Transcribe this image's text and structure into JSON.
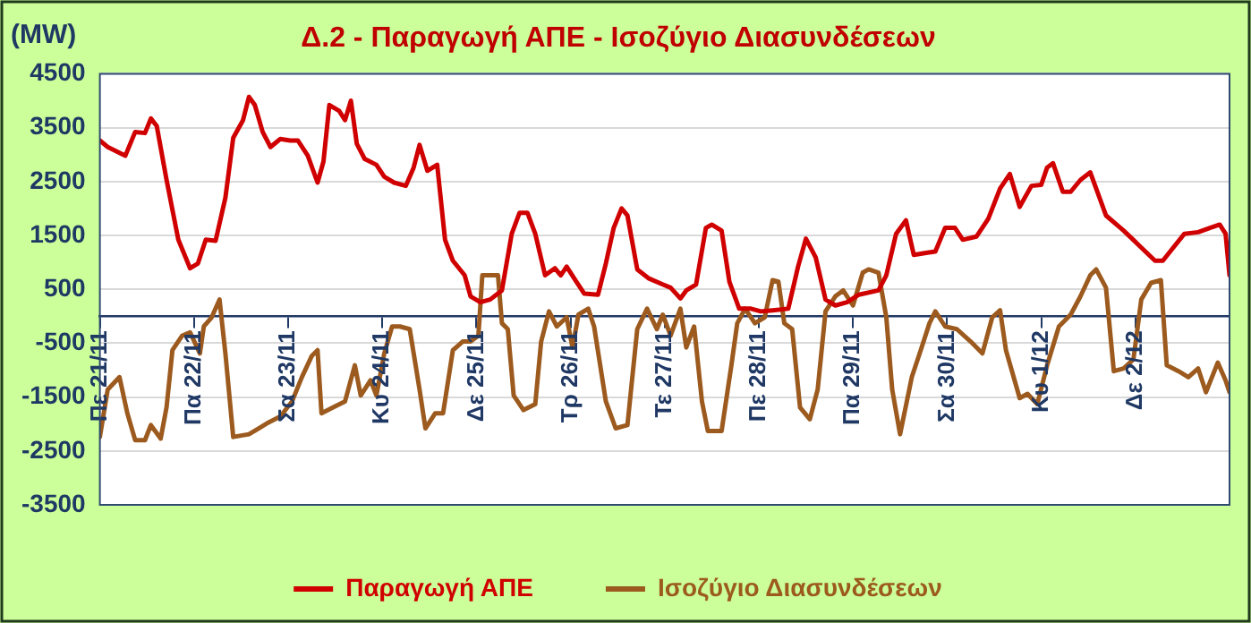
{
  "chart_data": {
    "type": "line",
    "title": "Δ.2 - Παραγωγή ΑΠΕ - Ισοζύγιο Διασυνδέσεων",
    "ylabel": "(MW)",
    "xlim": [
      "--11-21",
      "--12-03"
    ],
    "xticks": [
      {
        "value": "--11-21",
        "label": "Πε 21/11"
      },
      {
        "value": "--11-22",
        "label": "Πα 22/11"
      },
      {
        "value": "--11-23",
        "label": "Σα 23/11"
      },
      {
        "value": "--11-24",
        "label": "Κυ 24/11"
      },
      {
        "value": "--11-25",
        "label": "Δε 25/11"
      },
      {
        "value": "--11-26",
        "label": "Τρ 26/11"
      },
      {
        "value": "--11-27",
        "label": "Τε 27/11"
      },
      {
        "value": "--11-28",
        "label": "Πε 28/11"
      },
      {
        "value": "--11-29",
        "label": "Πα 29/11"
      },
      {
        "value": "--11-30",
        "label": "Σα 30/11"
      },
      {
        "value": "--12-01",
        "label": "Κυ 1/12"
      },
      {
        "value": "--12-02",
        "label": "Δε 2/12"
      }
    ],
    "ylim": [
      -3500,
      4500
    ],
    "yticks": [
      -3500,
      -2500,
      -1500,
      -500,
      500,
      1500,
      2500,
      3500,
      4500
    ],
    "grid": "y",
    "legend": "bottom",
    "line_style": "solid",
    "marker": "none",
    "series": [
      {
        "name": "Παραγωγή ΑΠΕ",
        "color": "#d00000",
        "x": [
          "--11-21T00:00",
          "--11-21T02:00",
          "--11-21T06:30",
          "--11-21T09:00",
          "--11-21T11:30",
          "--11-21T13:00",
          "--11-21T14:30",
          "--11-21T17:00",
          "--11-21T20:00",
          "--11-21T23:00",
          "--11-22T01:00",
          "--11-22T03:00",
          "--11-22T05:30",
          "--11-22T08:00",
          "--11-22T10:00",
          "--11-22T12:30",
          "--11-22T14:00",
          "--11-22T15:30",
          "--11-22T17:30",
          "--11-22T19:30",
          "--11-22T22:00",
          "--11-23T00:30",
          "--11-23T02:30",
          "--11-23T05:00",
          "--11-23T07:30",
          "--11-23T09:00",
          "--11-23T10:30",
          "--11-23T13:00",
          "--11-23T14:30",
          "--11-23T16:00",
          "--11-23T17:30",
          "--11-23T19:30",
          "--11-23T22:30",
          "--11-24T00:30",
          "--11-24T03:00",
          "--11-24T06:00",
          "--11-24T08:00",
          "--11-24T09:30",
          "--11-24T11:30",
          "--11-24T14:00",
          "--11-24T16:00",
          "--11-24T18:00",
          "--11-24T21:00",
          "--11-24T22:30",
          "--11-25T01:00",
          "--11-25T03:30",
          "--11-25T06:30",
          "--11-25T09:00",
          "--11-25T11:00",
          "--11-25T13:00",
          "--11-25T15:00",
          "--11-25T17:30",
          "--11-25T20:00",
          "--11-25T21:30",
          "--11-25T23:00",
          "--11-26T01:30",
          "--11-26T03:30",
          "--11-26T07:00",
          "--11-26T09:00",
          "--11-26T11:00",
          "--11-26T13:00",
          "--11-26T14:30",
          "--11-26T17:00",
          "--11-26T20:00",
          "--11-26T23:30",
          "--11-27T01:30",
          "--11-27T04:00",
          "--11-27T05:30",
          "--11-27T08:00",
          "--11-27T10:30",
          "--11-27T12:00",
          "--11-27T14:30",
          "--11-27T16:30",
          "--11-27T19:00",
          "--11-27T22:00",
          "--11-28T00:30",
          "--11-28T03:30",
          "--11-28T07:30",
          "--11-28T10:00",
          "--11-28T12:00",
          "--11-28T14:30",
          "--11-28T17:00",
          "--11-28T19:30",
          "--11-28T22:30",
          "--11-29T01:30",
          "--11-29T06:30",
          "--11-29T08:30",
          "--11-29T11:00",
          "--11-29T13:30",
          "--11-29T15:30",
          "--11-29T19:00",
          "--11-29T21:00",
          "--11-29T23:30",
          "--11-30T02:00",
          "--11-30T04:00",
          "--11-30T07:30",
          "--11-30T10:30",
          "--11-30T13:30",
          "--11-30T16:00",
          "--11-30T18:30",
          "--11-30T21:30",
          "--12-01T00:00",
          "--12-01T01:30",
          "--12-01T03:00",
          "--12-01T05:30",
          "--12-01T07:30",
          "--12-01T10:00",
          "--12-01T12:30",
          "--12-01T14:00",
          "--12-01T16:30",
          "--12-01T21:00",
          "--12-02T01:00",
          "--12-02T05:00",
          "--12-02T07:00",
          "--12-02T09:30",
          "--12-02T12:30",
          "--12-02T16:00",
          "--12-02T19:00",
          "--12-02T21:30",
          "--12-02T23:00",
          "--12-03T00:00"
        ],
        "values": [
          3260,
          3140,
          2980,
          3420,
          3400,
          3670,
          3530,
          2530,
          1420,
          890,
          980,
          1420,
          1400,
          2200,
          3310,
          3640,
          4070,
          3920,
          3420,
          3140,
          3290,
          3260,
          3260,
          2980,
          2480,
          2870,
          3920,
          3810,
          3640,
          4000,
          3200,
          2920,
          2810,
          2590,
          2480,
          2420,
          2760,
          3180,
          2700,
          2810,
          1420,
          1030,
          760,
          370,
          260,
          310,
          480,
          1530,
          1920,
          1920,
          1530,
          760,
          890,
          760,
          920,
          640,
          420,
          400,
          980,
          1640,
          2000,
          1870,
          870,
          700,
          590,
          530,
          330,
          480,
          590,
          1640,
          1700,
          1590,
          640,
          140,
          140,
          90,
          110,
          140,
          920,
          1440,
          1090,
          310,
          200,
          260,
          400,
          480,
          760,
          1530,
          1780,
          1140,
          1180,
          1200,
          1640,
          1640,
          1420,
          1480,
          1810,
          2370,
          2640,
          2030,
          2420,
          2440,
          2760,
          2840,
          2310,
          2310,
          2530,
          2670,
          2370,
          1870,
          1590,
          1310,
          1030,
          1030,
          1260,
          1530,
          1560,
          1640,
          1700,
          1530,
          760
        ]
      },
      {
        "name": "Ισοζύγιο Διασυνδέσεων",
        "color": "#9c5a1e",
        "x": [
          "--11-21T00:00",
          "--11-21T02:00",
          "--11-21T05:00",
          "--11-21T07:00",
          "--11-21T09:00",
          "--11-21T11:30",
          "--11-21T13:00",
          "--11-21T15:30",
          "--11-21T17:00",
          "--11-21T18:30",
          "--11-21T21:00",
          "--11-21T23:00",
          "--11-22T01:30",
          "--11-22T02:30",
          "--11-22T04:30",
          "--11-22T06:30",
          "--11-22T08:00",
          "--11-22T10:00",
          "--11-22T14:00",
          "--11-22T16:30",
          "--11-22T19:00",
          "--11-22T22:00",
          "--11-23T01:00",
          "--11-23T03:30",
          "--11-23T06:00",
          "--11-23T07:30",
          "--11-23T08:30",
          "--11-23T11:30",
          "--11-23T14:30",
          "--11-23T17:00",
          "--11-23T18:30",
          "--11-23T21:00",
          "--11-23T22:30",
          "--11-24T00:30",
          "--11-24T02:30",
          "--11-24T04:30",
          "--11-24T07:00",
          "--11-24T09:30",
          "--11-24T11:00",
          "--11-24T13:30",
          "--11-24T15:30",
          "--11-24T18:00",
          "--11-24T20:30",
          "--11-24T22:30",
          "--11-25T00:30",
          "--11-25T01:30",
          "--11-25T04:00",
          "--11-25T05:30",
          "--11-25T06:30",
          "--11-25T08:00",
          "--11-25T09:30",
          "--11-25T12:00",
          "--11-25T15:00",
          "--11-25T16:30",
          "--11-25T18:30",
          "--11-25T20:30",
          "--11-25T23:00",
          "--11-26T00:30",
          "--11-26T02:00",
          "--11-26T04:30",
          "--11-26T06:00",
          "--11-26T09:00",
          "--11-26T11:30",
          "--11-26T14:30",
          "--11-26T17:00",
          "--11-26T19:30",
          "--11-26T22:00",
          "--11-26T23:30",
          "--11-27T01:30",
          "--11-27T04:00",
          "--11-27T05:30",
          "--11-27T07:30",
          "--11-27T09:30",
          "--11-27T11:00",
          "--11-27T14:30",
          "--11-27T17:00",
          "--11-27T18:30",
          "--11-27T20:30",
          "--11-27T23:00",
          "--11-28T01:30",
          "--11-28T03:30",
          "--11-28T05:00",
          "--11-28T06:30",
          "--11-28T08:30",
          "--11-28T10:30",
          "--11-28T13:00",
          "--11-28T15:00",
          "--11-28T17:00",
          "--11-28T19:30",
          "--11-28T21:30",
          "--11-29T00:00",
          "--11-29T02:30",
          "--11-29T04:00",
          "--11-29T06:30",
          "--11-29T08:30",
          "--11-29T10:00",
          "--11-29T12:00",
          "--11-29T15:00",
          "--11-29T17:30",
          "--11-29T19:30",
          "--11-29T21:00",
          "--11-29T23:30",
          "--11-30T02:30",
          "--11-30T06:00",
          "--11-30T09:00",
          "--11-30T11:30",
          "--11-30T13:30",
          "--11-30T15:00",
          "--11-30T18:30",
          "--11-30T20:30",
          "--11-30T23:00",
          "--12-01T01:30",
          "--12-01T04:30",
          "--12-01T07:30",
          "--12-01T10:00",
          "--12-01T12:30",
          "--12-01T14:00",
          "--12-01T16:30",
          "--12-01T18:30",
          "--12-01T21:00",
          "--12-01T23:30",
          "--12-02T01:30",
          "--12-02T04:00",
          "--12-02T06:30",
          "--12-02T08:00",
          "--12-02T11:00",
          "--12-02T13:30",
          "--12-02T16:00",
          "--12-02T18:00",
          "--12-02T21:00",
          "--12-02T23:00",
          "--12-03T00:00"
        ],
        "values": [
          -2240,
          -1360,
          -1130,
          -1800,
          -2300,
          -2300,
          -2020,
          -2270,
          -1690,
          -630,
          -360,
          -300,
          -690,
          -190,
          -20,
          310,
          -690,
          -2240,
          -2190,
          -2080,
          -1970,
          -1860,
          -1580,
          -1130,
          -740,
          -630,
          -1800,
          -1690,
          -1580,
          -910,
          -1470,
          -1190,
          -1470,
          -690,
          -190,
          -190,
          -240,
          -1360,
          -2080,
          -1800,
          -1800,
          -630,
          -470,
          -470,
          -360,
          760,
          760,
          760,
          -130,
          -240,
          -1470,
          -1740,
          -1630,
          -470,
          90,
          -190,
          -20,
          -580,
          30,
          140,
          -190,
          -1580,
          -2080,
          -2020,
          -240,
          140,
          -240,
          30,
          -360,
          140,
          -580,
          -190,
          -1580,
          -2130,
          -2130,
          -910,
          -130,
          140,
          -130,
          -20,
          670,
          640,
          -130,
          -240,
          -1690,
          -1910,
          -1360,
          90,
          370,
          480,
          200,
          810,
          870,
          810,
          -20,
          -1360,
          -2190,
          -1130,
          -580,
          -130,
          90,
          -190,
          -240,
          -470,
          -690,
          -20,
          110,
          -630,
          -1520,
          -1440,
          -1630,
          -910,
          -190,
          30,
          370,
          760,
          870,
          530,
          -1020,
          -970,
          -800,
          310,
          620,
          670,
          -910,
          -1020,
          -1130,
          -970,
          -1410,
          -860,
          -1190,
          -1410
        ]
      }
    ]
  }
}
